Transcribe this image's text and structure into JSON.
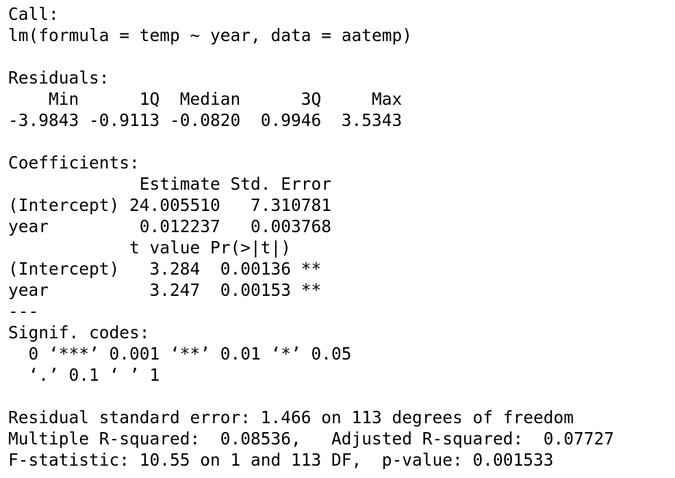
{
  "output": {
    "call_header": "Call:",
    "call_formula": "lm(formula = temp ~ year, data = aatemp)",
    "residuals_header": "Residuals:",
    "residuals_labels": "    Min      1Q  Median      3Q     Max ",
    "residuals_values": "-3.9843 -0.9113 -0.0820  0.9946  3.5343 ",
    "coefficients_header": "Coefficients:",
    "coef_header_1": "             Estimate Std. Error",
    "coef_intercept_1": "(Intercept) 24.005510   7.310781",
    "coef_year_1": "year         0.012237   0.003768",
    "coef_header_2": "            t value Pr(>|t|)   ",
    "coef_intercept_2": "(Intercept)   3.284  0.00136 **",
    "coef_year_2": "year          3.247  0.00153 **",
    "separator": "---",
    "signif_header": "Signif. codes:  ",
    "signif_line_1": "  0 ‘***’ 0.001 ‘**’ 0.01 ‘*’ 0.05",
    "signif_line_2": "  ‘.’ 0.1 ‘ ’ 1",
    "residual_se": "Residual standard error: 1.466 on 113 degrees of freedom",
    "r_squared": "Multiple R-squared:  0.08536,\tAdjusted R-squared:  0.07727 ",
    "f_statistic": "F-statistic: 10.55 on 1 and 113 DF,  p-value: 0.001533"
  }
}
